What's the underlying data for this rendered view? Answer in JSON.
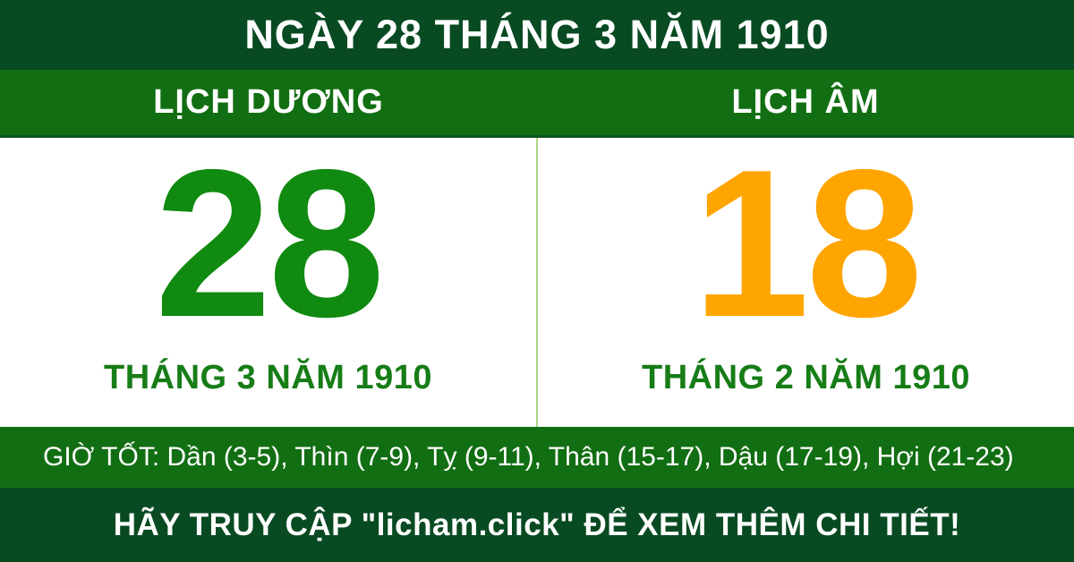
{
  "header": {
    "title": "NGÀY 28 THÁNG 3 NĂM 1910"
  },
  "calendars": {
    "solar": {
      "label": "LỊCH DƯƠNG",
      "day": "28",
      "month_year": "THÁNG 3 NĂM 1910"
    },
    "lunar": {
      "label": "LỊCH ÂM",
      "day": "18",
      "month_year": "THÁNG 2 NĂM 1910"
    }
  },
  "good_hours": {
    "text": "GIỜ TỐT: Dần (3-5), Thìn (7-9), Tỵ (9-11), Thân (15-17), Dậu (17-19), Hợi (21-23)"
  },
  "footer": {
    "text": "HÃY TRUY CẬP \"licham.click\" ĐỂ XEM THÊM CHI TIẾT!"
  },
  "colors": {
    "dark_green_band": "#084a22",
    "medium_green_band": "#126e12",
    "solar_day_green": "#108a10",
    "lunar_day_orange": "#ffa500",
    "month_text_green": "#177d17",
    "column_divider": "#aed581",
    "text_on_green": "#ffffff",
    "body_background": "#ffffff"
  }
}
